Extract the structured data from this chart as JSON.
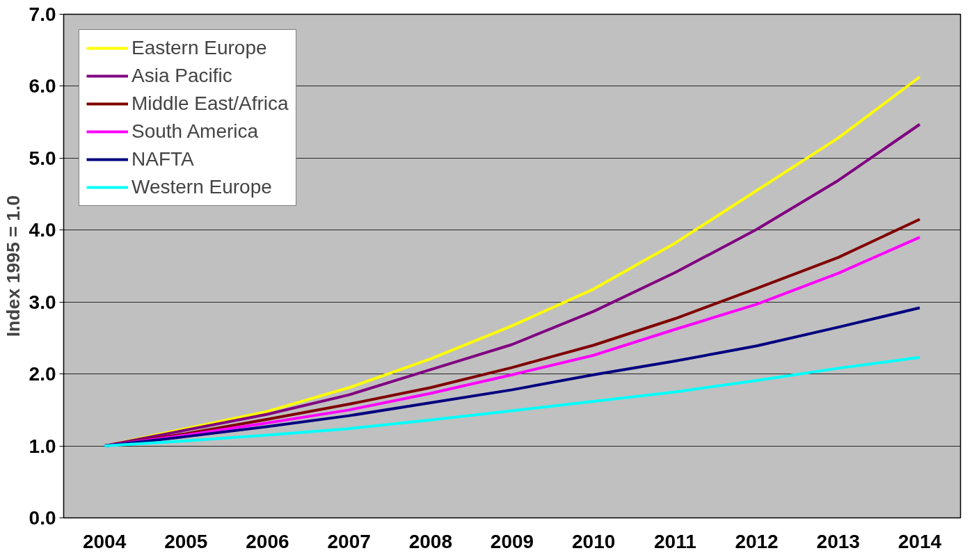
{
  "chart_data": {
    "type": "line",
    "ylabel": "Index 1995 = 1.0",
    "categories": [
      "2004",
      "2005",
      "2006",
      "2007",
      "2008",
      "2009",
      "2010",
      "2011",
      "2012",
      "2013",
      "2014"
    ],
    "ylim": [
      0,
      7
    ],
    "yticks": [
      {
        "value": 0,
        "label": "0.0"
      },
      {
        "value": 1,
        "label": "1.0"
      },
      {
        "value": 2,
        "label": "2.0"
      },
      {
        "value": 3,
        "label": "3.0"
      },
      {
        "value": 4,
        "label": "4.0"
      },
      {
        "value": 5,
        "label": "5.0"
      },
      {
        "value": 6,
        "label": "6.0"
      },
      {
        "value": 7,
        "label": "7.0"
      }
    ],
    "grid": "y",
    "legend": "top left",
    "marker": "none",
    "line_style": "solid",
    "series": [
      {
        "name": "Eastern Europe",
        "color": "#ffff00",
        "values": [
          1.0,
          1.24,
          1.48,
          1.81,
          2.21,
          2.67,
          3.18,
          3.82,
          4.55,
          5.28,
          6.13
        ]
      },
      {
        "name": "Asia Pacific",
        "color": "#800080",
        "values": [
          1.0,
          1.22,
          1.44,
          1.71,
          2.06,
          2.41,
          2.87,
          3.41,
          4.01,
          4.69,
          5.47
        ]
      },
      {
        "name": "Middle East/Africa",
        "color": "#800000",
        "values": [
          1.0,
          1.17,
          1.37,
          1.58,
          1.81,
          2.09,
          2.4,
          2.77,
          3.19,
          3.62,
          4.15
        ]
      },
      {
        "name": "South America",
        "color": "#ff00ff",
        "values": [
          1.0,
          1.15,
          1.32,
          1.5,
          1.73,
          1.99,
          2.26,
          2.62,
          2.97,
          3.4,
          3.9
        ]
      },
      {
        "name": "NAFTA",
        "color": "#000080",
        "values": [
          1.0,
          1.13,
          1.27,
          1.42,
          1.6,
          1.78,
          1.99,
          2.18,
          2.39,
          2.65,
          2.92
        ]
      },
      {
        "name": "Western Europe",
        "color": "#00ffff",
        "values": [
          1.0,
          1.07,
          1.15,
          1.24,
          1.36,
          1.49,
          1.62,
          1.75,
          1.91,
          2.08,
          2.23
        ]
      }
    ]
  }
}
